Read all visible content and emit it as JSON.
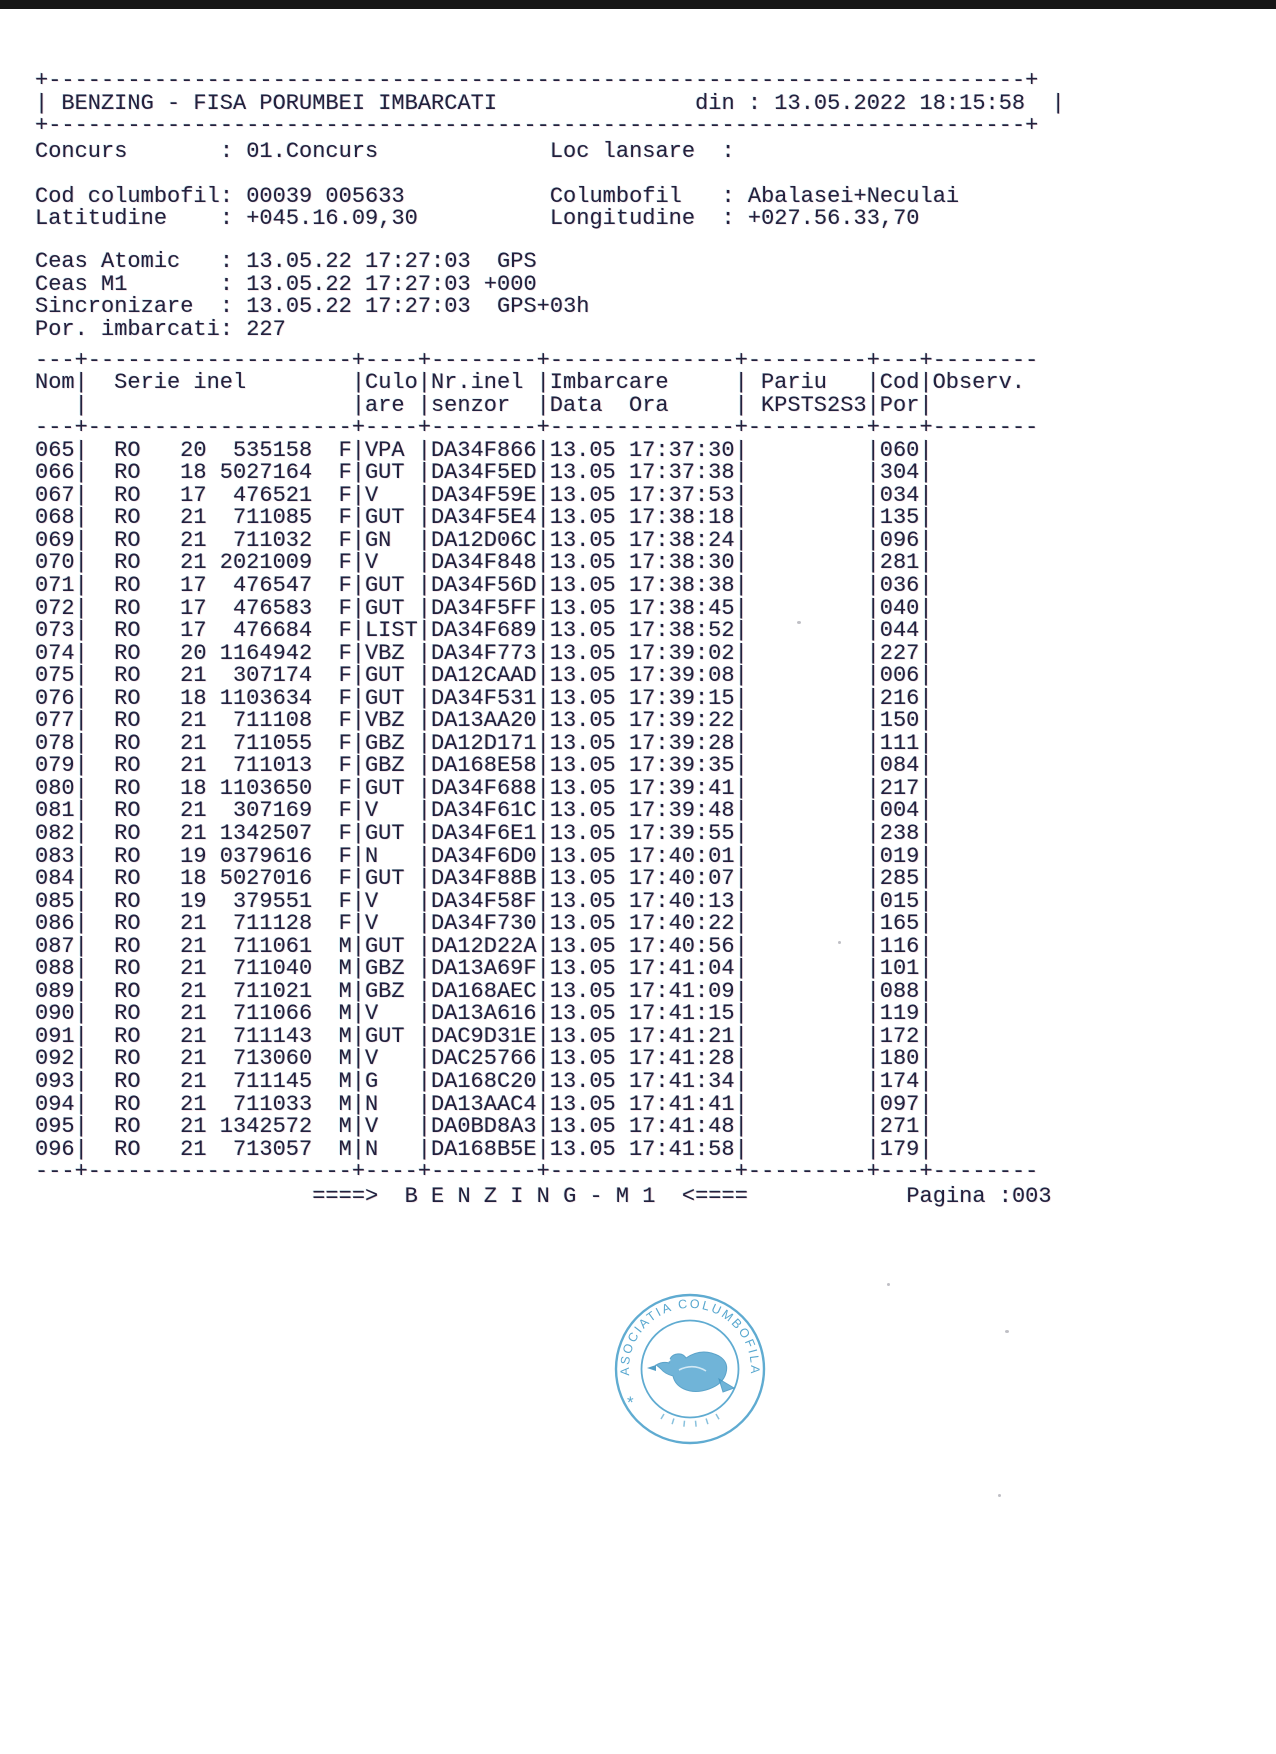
{
  "punct": {
    "colon": ": ",
    "bar": "|"
  },
  "ink_color": "#23203d",
  "stamp_color": "#4aa0cb",
  "document": {
    "title": "BENZING - FISA PORUMBEI IMBARCATI",
    "din_label": "din : ",
    "din_value": "13.05.2022 18:15:58"
  },
  "info": {
    "concurs_label": "Concurs",
    "concurs_value": "01.Concurs",
    "loc_lansare_label": "Loc lansare",
    "loc_lansare_value": "",
    "cod_columbofil_label": "Cod columbofil",
    "cod_columbofil_value": "00039 005633",
    "columbofil_label": "Columbofil",
    "columbofil_value": "Abalasei+Neculai",
    "latitudine_label": "Latitudine",
    "latitudine_value": "+045.16.09,30",
    "longitudine_label": "Longitudine",
    "longitudine_value": "+027.56.33,70",
    "ceas_atomic_label": "Ceas Atomic",
    "ceas_atomic_value": "13.05.22 17:27:03  GPS",
    "ceas_m1_label": "Ceas M1",
    "ceas_m1_value": "13.05.22 17:27:03 +000",
    "sincronizare_label": "Sincronizare",
    "sincronizare_value": "13.05.22 17:27:03  GPS+03h",
    "por_imbarcati_label": "Por. imbarcati",
    "por_imbarcati_value": "227"
  },
  "table": {
    "headers": {
      "nom": "Nom",
      "serie": "Serie inel",
      "culoare_line1": "Culo",
      "culoare_line2": "are",
      "senzor_line1": "Nr.inel",
      "senzor_line2": "senzor",
      "imbarcare_line1": "Imbarcare",
      "imbarcare_line2": "Data  Ora",
      "pariu_line1": "Pariu",
      "pariu_line2": "KPSTS2S3",
      "cod_line1": "Cod",
      "cod_line2": "Por",
      "observ": "Observ."
    },
    "rows": [
      [
        "065",
        "RO",
        "20",
        "535158",
        "F",
        "VPA",
        "DA34F866",
        "13.05",
        "17:37:30",
        "060"
      ],
      [
        "066",
        "RO",
        "18",
        "5027164",
        "F",
        "GUT",
        "DA34F5ED",
        "13.05",
        "17:37:38",
        "304"
      ],
      [
        "067",
        "RO",
        "17",
        "476521",
        "F",
        "V",
        "DA34F59E",
        "13.05",
        "17:37:53",
        "034"
      ],
      [
        "068",
        "RO",
        "21",
        "711085",
        "F",
        "GUT",
        "DA34F5E4",
        "13.05",
        "17:38:18",
        "135"
      ],
      [
        "069",
        "RO",
        "21",
        "711032",
        "F",
        "GN",
        "DA12D06C",
        "13.05",
        "17:38:24",
        "096"
      ],
      [
        "070",
        "RO",
        "21",
        "2021009",
        "F",
        "V",
        "DA34F848",
        "13.05",
        "17:38:30",
        "281"
      ],
      [
        "071",
        "RO",
        "17",
        "476547",
        "F",
        "GUT",
        "DA34F56D",
        "13.05",
        "17:38:38",
        "036"
      ],
      [
        "072",
        "RO",
        "17",
        "476583",
        "F",
        "GUT",
        "DA34F5FF",
        "13.05",
        "17:38:45",
        "040"
      ],
      [
        "073",
        "RO",
        "17",
        "476684",
        "F",
        "LIST",
        "DA34F689",
        "13.05",
        "17:38:52",
        "044"
      ],
      [
        "074",
        "RO",
        "20",
        "1164942",
        "F",
        "VBZ",
        "DA34F773",
        "13.05",
        "17:39:02",
        "227"
      ],
      [
        "075",
        "RO",
        "21",
        "307174",
        "F",
        "GUT",
        "DA12CAAD",
        "13.05",
        "17:39:08",
        "006"
      ],
      [
        "076",
        "RO",
        "18",
        "1103634",
        "F",
        "GUT",
        "DA34F531",
        "13.05",
        "17:39:15",
        "216"
      ],
      [
        "077",
        "RO",
        "21",
        "711108",
        "F",
        "VBZ",
        "DA13AA20",
        "13.05",
        "17:39:22",
        "150"
      ],
      [
        "078",
        "RO",
        "21",
        "711055",
        "F",
        "GBZ",
        "DA12D171",
        "13.05",
        "17:39:28",
        "111"
      ],
      [
        "079",
        "RO",
        "21",
        "711013",
        "F",
        "GBZ",
        "DA168E58",
        "13.05",
        "17:39:35",
        "084"
      ],
      [
        "080",
        "RO",
        "18",
        "1103650",
        "F",
        "GUT",
        "DA34F688",
        "13.05",
        "17:39:41",
        "217"
      ],
      [
        "081",
        "RO",
        "21",
        "307169",
        "F",
        "V",
        "DA34F61C",
        "13.05",
        "17:39:48",
        "004"
      ],
      [
        "082",
        "RO",
        "21",
        "1342507",
        "F",
        "GUT",
        "DA34F6E1",
        "13.05",
        "17:39:55",
        "238"
      ],
      [
        "083",
        "RO",
        "19",
        "0379616",
        "F",
        "N",
        "DA34F6D0",
        "13.05",
        "17:40:01",
        "019"
      ],
      [
        "084",
        "RO",
        "18",
        "5027016",
        "F",
        "GUT",
        "DA34F88B",
        "13.05",
        "17:40:07",
        "285"
      ],
      [
        "085",
        "RO",
        "19",
        "379551",
        "F",
        "V",
        "DA34F58F",
        "13.05",
        "17:40:13",
        "015"
      ],
      [
        "086",
        "RO",
        "21",
        "711128",
        "F",
        "V",
        "DA34F730",
        "13.05",
        "17:40:22",
        "165"
      ],
      [
        "087",
        "RO",
        "21",
        "711061",
        "M",
        "GUT",
        "DA12D22A",
        "13.05",
        "17:40:56",
        "116"
      ],
      [
        "088",
        "RO",
        "21",
        "711040",
        "M",
        "GBZ",
        "DA13A69F",
        "13.05",
        "17:41:04",
        "101"
      ],
      [
        "089",
        "RO",
        "21",
        "711021",
        "M",
        "GBZ",
        "DA168AEC",
        "13.05",
        "17:41:09",
        "088"
      ],
      [
        "090",
        "RO",
        "21",
        "711066",
        "M",
        "V",
        "DA13A616",
        "13.05",
        "17:41:15",
        "119"
      ],
      [
        "091",
        "RO",
        "21",
        "711143",
        "M",
        "GUT",
        "DAC9D31E",
        "13.05",
        "17:41:21",
        "172"
      ],
      [
        "092",
        "RO",
        "21",
        "713060",
        "M",
        "V",
        "DAC25766",
        "13.05",
        "17:41:28",
        "180"
      ],
      [
        "093",
        "RO",
        "21",
        "711145",
        "M",
        "G",
        "DA168C20",
        "13.05",
        "17:41:34",
        "174"
      ],
      [
        "094",
        "RO",
        "21",
        "711033",
        "M",
        "N",
        "DA13AAC4",
        "13.05",
        "17:41:41",
        "097"
      ],
      [
        "095",
        "RO",
        "21",
        "1342572",
        "M",
        "V",
        "DA0BD8A3",
        "13.05",
        "17:41:48",
        "271"
      ],
      [
        "096",
        "RO",
        "21",
        "713057",
        "M",
        "N",
        "DA168B5E",
        "13.05",
        "17:41:58",
        "179"
      ]
    ]
  },
  "footer": {
    "benzing_line": "====>  B E N Z I N G - M 1  <====",
    "pagina_label": "Pagina :",
    "pagina_value": "003"
  },
  "stamp": {
    "arc_text": "ASOCIATIA COLUMBOFILA",
    "star": "*"
  }
}
